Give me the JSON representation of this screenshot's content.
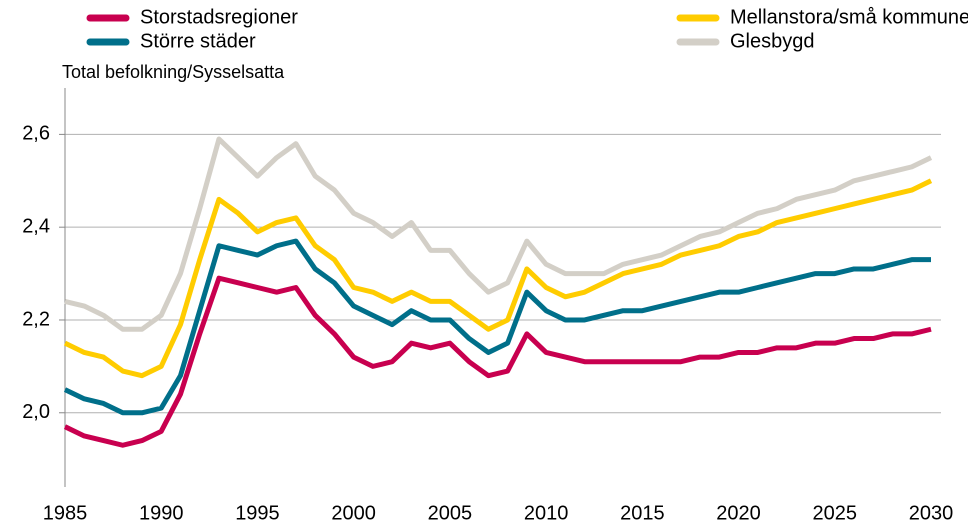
{
  "chart_data": {
    "type": "line",
    "y_axis_label": "Total befolkning/Sysselsatta",
    "x": [
      1985,
      1986,
      1987,
      1988,
      1989,
      1990,
      1991,
      1992,
      1993,
      1994,
      1995,
      1996,
      1997,
      1998,
      1999,
      2000,
      2001,
      2002,
      2003,
      2004,
      2005,
      2006,
      2007,
      2008,
      2009,
      2010,
      2011,
      2012,
      2013,
      2014,
      2015,
      2016,
      2017,
      2018,
      2019,
      2020,
      2021,
      2022,
      2023,
      2024,
      2025,
      2026,
      2027,
      2028,
      2029,
      2030
    ],
    "series": [
      {
        "name": "Storstadsregioner",
        "color": "#c8004f",
        "values": [
          1.97,
          1.95,
          1.94,
          1.93,
          1.94,
          1.96,
          2.04,
          2.17,
          2.29,
          2.28,
          2.27,
          2.26,
          2.27,
          2.21,
          2.17,
          2.12,
          2.1,
          2.11,
          2.15,
          2.14,
          2.15,
          2.11,
          2.08,
          2.09,
          2.17,
          2.13,
          2.12,
          2.11,
          2.11,
          2.11,
          2.11,
          2.11,
          2.11,
          2.12,
          2.12,
          2.13,
          2.13,
          2.14,
          2.14,
          2.15,
          2.15,
          2.16,
          2.16,
          2.17,
          2.17,
          2.18
        ]
      },
      {
        "name": "Större städer",
        "color": "#006f8a",
        "values": [
          2.05,
          2.03,
          2.02,
          2.0,
          2.0,
          2.01,
          2.08,
          2.22,
          2.36,
          2.35,
          2.34,
          2.36,
          2.37,
          2.31,
          2.28,
          2.23,
          2.21,
          2.19,
          2.22,
          2.2,
          2.2,
          2.16,
          2.13,
          2.15,
          2.26,
          2.22,
          2.2,
          2.2,
          2.21,
          2.22,
          2.22,
          2.23,
          2.24,
          2.25,
          2.26,
          2.26,
          2.27,
          2.28,
          2.29,
          2.3,
          2.3,
          2.31,
          2.31,
          2.32,
          2.33,
          2.33
        ]
      },
      {
        "name": "Mellanstora/små kommuner",
        "color": "#ffcc00",
        "values": [
          2.15,
          2.13,
          2.12,
          2.09,
          2.08,
          2.1,
          2.19,
          2.33,
          2.46,
          2.43,
          2.39,
          2.41,
          2.42,
          2.36,
          2.33,
          2.27,
          2.26,
          2.24,
          2.26,
          2.24,
          2.24,
          2.21,
          2.18,
          2.2,
          2.31,
          2.27,
          2.25,
          2.26,
          2.28,
          2.3,
          2.31,
          2.32,
          2.34,
          2.35,
          2.36,
          2.38,
          2.39,
          2.41,
          2.42,
          2.43,
          2.44,
          2.45,
          2.46,
          2.47,
          2.48,
          2.5
        ]
      },
      {
        "name": "Glesbygd",
        "color": "#d3cfc7",
        "values": [
          2.24,
          2.23,
          2.21,
          2.18,
          2.18,
          2.21,
          2.3,
          2.44,
          2.59,
          2.55,
          2.51,
          2.55,
          2.58,
          2.51,
          2.48,
          2.43,
          2.41,
          2.38,
          2.41,
          2.35,
          2.35,
          2.3,
          2.26,
          2.28,
          2.37,
          2.32,
          2.3,
          2.3,
          2.3,
          2.32,
          2.33,
          2.34,
          2.36,
          2.38,
          2.39,
          2.41,
          2.43,
          2.44,
          2.46,
          2.47,
          2.48,
          2.5,
          2.51,
          2.52,
          2.53,
          2.55
        ]
      }
    ],
    "xlim": [
      1985,
      2030
    ],
    "xticks": [
      1985,
      1990,
      1995,
      2000,
      2005,
      2010,
      2015,
      2020,
      2025,
      2030
    ],
    "ylim": [
      1.84,
      2.7
    ],
    "yticks": [
      {
        "value": 2.0,
        "label": "2,0"
      },
      {
        "value": 2.2,
        "label": "2,2"
      },
      {
        "value": 2.4,
        "label": "2,4"
      },
      {
        "value": 2.6,
        "label": "2,6"
      }
    ],
    "grid": true
  }
}
